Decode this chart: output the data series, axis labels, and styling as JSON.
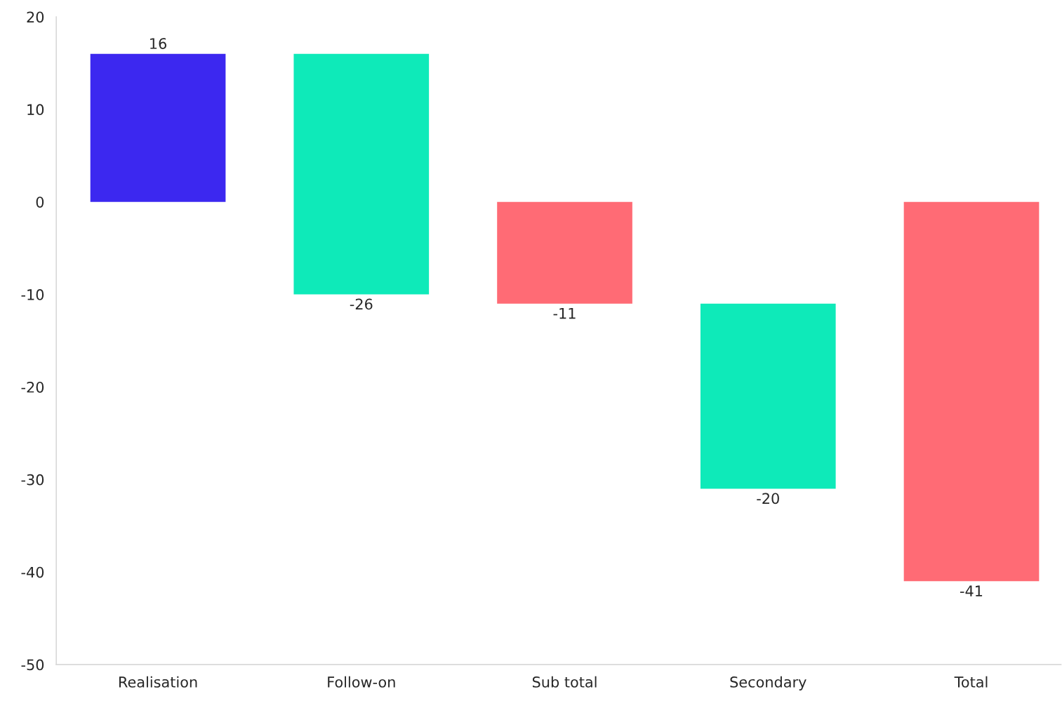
{
  "chart_data": {
    "type": "bar",
    "categories": [
      "Realisation",
      "Follow-on",
      "Sub total",
      "Secondary",
      "Total"
    ],
    "values": [
      16,
      -26,
      -11,
      -20,
      -41
    ],
    "base": [
      0,
      16,
      0,
      -11,
      0
    ],
    "colors": [
      "#3c28f0",
      "#0eeab9",
      "#ff6b75",
      "#0eeab9",
      "#ff6b75"
    ],
    "data_labels": true,
    "ylim": [
      -50,
      20
    ],
    "yticks": [
      -50,
      -40,
      -30,
      -20,
      -10,
      0,
      10,
      20
    ],
    "grid": false,
    "legend": false
  }
}
